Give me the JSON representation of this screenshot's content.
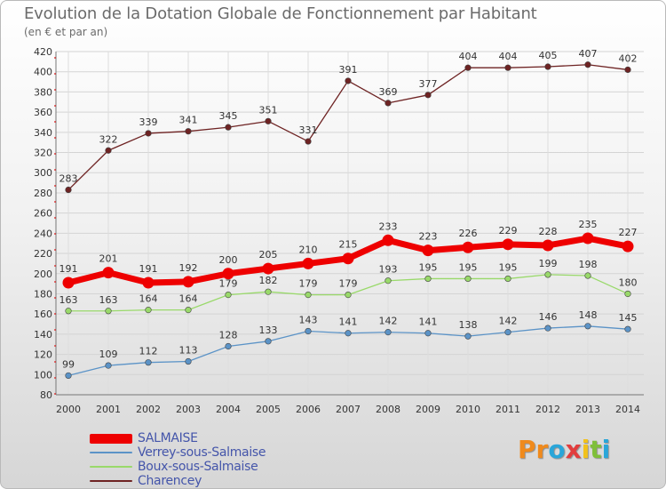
{
  "title": "Evolution de la Dotation Globale de Fonctionnement par Habitant",
  "subtitle": "(en € et par an)",
  "brand": {
    "text": "Proxiti",
    "letters": [
      "P",
      "r",
      "o",
      "x",
      "i",
      "t",
      "i"
    ],
    "colors": [
      "#f08a1c",
      "#f08a1c",
      "#2aa6d9",
      "#e23d3d",
      "#f2c21b",
      "#7fbf3a",
      "#2aa6d9"
    ]
  },
  "chart_data": {
    "type": "line",
    "title": "Evolution de la Dotation Globale de Fonctionnement par Habitant",
    "subtitle": "(en € et par an)",
    "xlabel": "",
    "ylabel": "",
    "ylim": [
      80,
      420
    ],
    "yticks": [
      80,
      100,
      120,
      140,
      160,
      180,
      200,
      220,
      240,
      260,
      280,
      300,
      320,
      340,
      360,
      380,
      400,
      420
    ],
    "grid": true,
    "legend_position": "bottom-left",
    "categories": [
      "2000",
      "2001",
      "2002",
      "2003",
      "2004",
      "2005",
      "2006",
      "2007",
      "2008",
      "2009",
      "2010",
      "2011",
      "2012",
      "2013",
      "2014"
    ],
    "series": [
      {
        "name": "SALMAISE",
        "color": "#ee0000",
        "emphasis": true,
        "values": [
          191,
          201,
          191,
          192,
          200,
          205,
          210,
          215,
          233,
          223,
          226,
          229,
          228,
          235,
          227
        ]
      },
      {
        "name": "Verrey-sous-Salmaise",
        "color": "#5b93c7",
        "emphasis": false,
        "values": [
          99,
          109,
          112,
          113,
          128,
          133,
          143,
          141,
          142,
          141,
          138,
          142,
          146,
          148,
          145
        ]
      },
      {
        "name": "Boux-sous-Salmaise",
        "color": "#99d96a",
        "emphasis": false,
        "values": [
          163,
          163,
          164,
          164,
          179,
          182,
          179,
          179,
          193,
          195,
          195,
          195,
          199,
          198,
          180
        ]
      },
      {
        "name": "Charencey",
        "color": "#6e2323",
        "emphasis": false,
        "values": [
          283,
          322,
          339,
          341,
          345,
          351,
          331,
          391,
          369,
          377,
          404,
          404,
          405,
          407,
          402
        ]
      }
    ]
  }
}
